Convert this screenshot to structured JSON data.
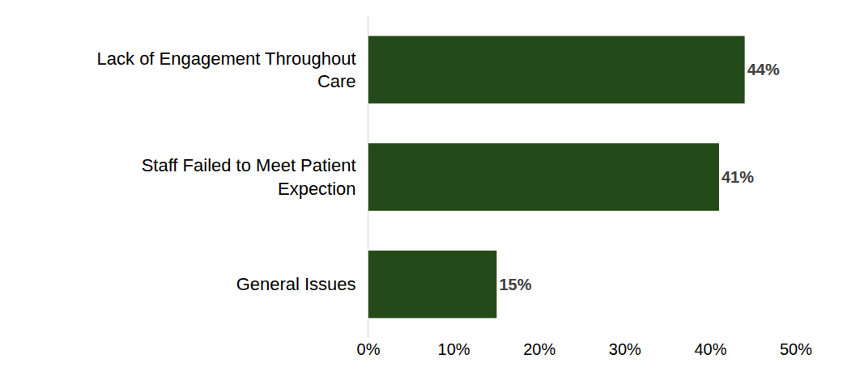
{
  "chart_data": {
    "type": "bar",
    "orientation": "horizontal",
    "categories": [
      "Lack of Engagement Throughout Care",
      "Staff Failed to Meet Patient Expection",
      "General Issues"
    ],
    "values": [
      44,
      41,
      15
    ],
    "value_labels": [
      "44%",
      "41%",
      "15%"
    ],
    "data_labels": true,
    "color": "#234a18",
    "xlim": [
      0,
      50
    ],
    "xticks": [
      {
        "value": 0,
        "label": "0%"
      },
      {
        "value": 10,
        "label": "10%"
      },
      {
        "value": 20,
        "label": "20%"
      },
      {
        "value": 30,
        "label": "30%"
      },
      {
        "value": 40,
        "label": "40%"
      },
      {
        "value": 50,
        "label": "50%"
      }
    ],
    "grid": false
  }
}
